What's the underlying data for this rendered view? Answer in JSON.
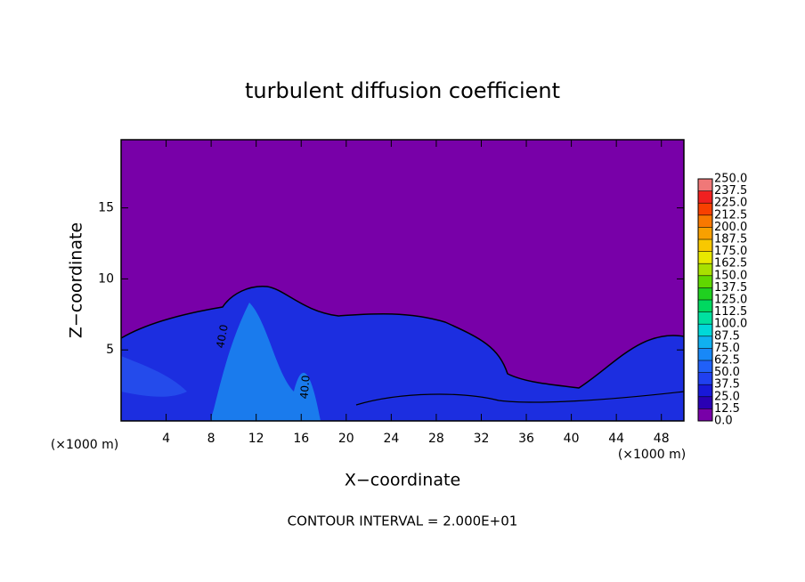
{
  "chart_data": {
    "type": "contour",
    "title": "turbulent diffusion coefficient",
    "xlabel": "X−coordinate",
    "ylabel": "Z−coordinate",
    "x_unit": "(×1000 m)",
    "y_unit": "(×1000 m)",
    "footnote": "CONTOUR INTERVAL = 2.000E+01",
    "annotations": [
      "40.0",
      "40.0"
    ],
    "xlim": [
      0,
      50
    ],
    "xticks": [
      4,
      8,
      12,
      16,
      20,
      24,
      28,
      32,
      36,
      40,
      44,
      48
    ],
    "ylim": [
      0,
      19.8
    ],
    "yticks": [
      5,
      10,
      15
    ],
    "colorbar": {
      "levels": [
        {
          "value": 0,
          "label": "0.0"
        },
        {
          "value": 12.5,
          "label": "12.5"
        },
        {
          "value": 25,
          "label": "25.0"
        },
        {
          "value": 37.5,
          "label": "37.5"
        },
        {
          "value": 50,
          "label": "50.0"
        },
        {
          "value": 62.5,
          "label": "62.5"
        },
        {
          "value": 75,
          "label": "75.0"
        },
        {
          "value": 87.5,
          "label": "87.5"
        },
        {
          "value": 100,
          "label": "100.0"
        },
        {
          "value": 112.5,
          "label": "112.5"
        },
        {
          "value": 125,
          "label": "125.0"
        },
        {
          "value": 137.5,
          "label": "137.5"
        },
        {
          "value": 150,
          "label": "150.0"
        },
        {
          "value": 162.5,
          "label": "162.5"
        },
        {
          "value": 175,
          "label": "175.0"
        },
        {
          "value": 187.5,
          "label": "187.5"
        },
        {
          "value": 200,
          "label": "200.0"
        },
        {
          "value": 212.5,
          "label": "212.5"
        },
        {
          "value": 225,
          "label": "225.0"
        },
        {
          "value": 237.5,
          "label": "237.5"
        },
        {
          "value": 250,
          "label": "250.0"
        }
      ],
      "colors": [
        "#7800a8",
        "#2a00b4",
        "#1818d8",
        "#2040f0",
        "#2060f8",
        "#1888f8",
        "#10b0f0",
        "#00d8d8",
        "#00e0a0",
        "#00d860",
        "#20d020",
        "#60d800",
        "#a8e000",
        "#e8e800",
        "#f8c800",
        "#f8a000",
        "#f87800",
        "#f84000",
        "#f02020",
        "#f07878"
      ]
    }
  }
}
